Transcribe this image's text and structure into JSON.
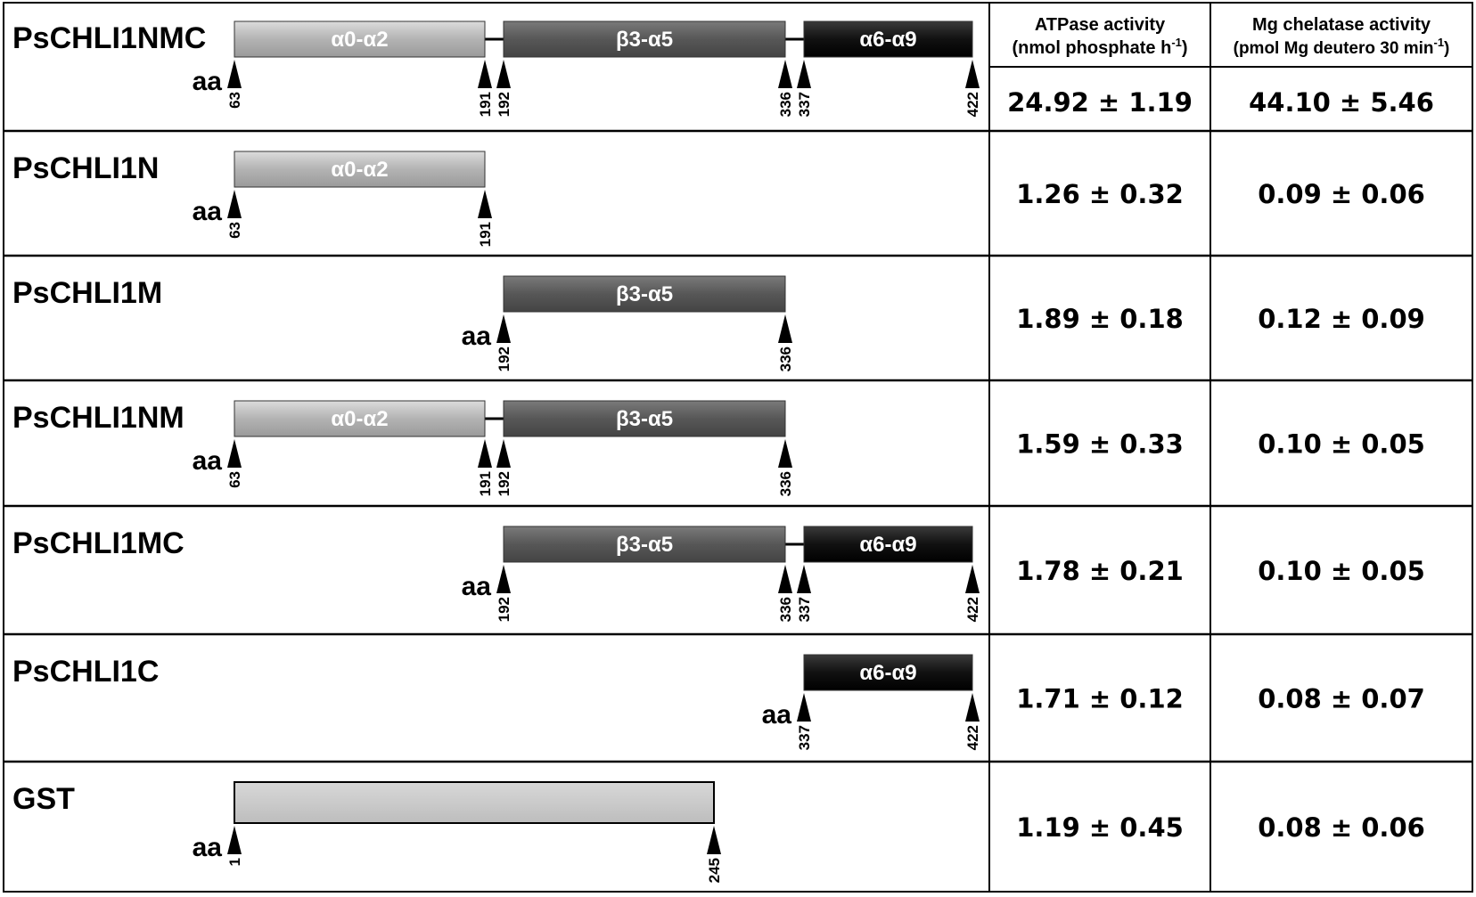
{
  "headers": {
    "atpase_line1": "ATPase activity",
    "atpase_line2": "(nmol phosphate h",
    "atpase_sup": "-1",
    "atpase_close": ")",
    "mgchel_line1": "Mg chelatase activity",
    "mgchel_line2": "(pmol Mg deutero 30 min",
    "mgchel_sup": "-1",
    "mgchel_close": ")"
  },
  "aa_label": "aa",
  "domains": {
    "N": {
      "label": "α0-α2",
      "fill": "#b5b5b5"
    },
    "M": {
      "label": "β3-α5",
      "fill": "#5a5a5a"
    },
    "C": {
      "label": "α6-α9",
      "fill": "#111111"
    },
    "GST": {
      "label": "",
      "fill": "#c8c8c8"
    }
  },
  "rows": [
    {
      "name": "PsCHLI1NMC",
      "segments": [
        "N",
        "M",
        "C"
      ],
      "markers": [
        "63",
        "191",
        "192",
        "336",
        "337",
        "422"
      ],
      "atpase": "24.92 ± 1.19",
      "mgchelatase": "44.10 ± 5.46"
    },
    {
      "name": "PsCHLI1N",
      "segments": [
        "N"
      ],
      "markers": [
        "63",
        "191"
      ],
      "atpase": "1.26 ± 0.32",
      "mgchelatase": "0.09 ± 0.06"
    },
    {
      "name": "PsCHLI1M",
      "segments": [
        "M"
      ],
      "markers": [
        "192",
        "336"
      ],
      "atpase": "1.89 ± 0.18",
      "mgchelatase": "0.12 ± 0.09"
    },
    {
      "name": "PsCHLI1NM",
      "segments": [
        "N",
        "M"
      ],
      "markers": [
        "63",
        "191",
        "192",
        "336"
      ],
      "atpase": "1.59 ± 0.33",
      "mgchelatase": "0.10 ± 0.05"
    },
    {
      "name": "PsCHLI1MC",
      "segments": [
        "M",
        "C"
      ],
      "markers": [
        "192",
        "336",
        "337",
        "422"
      ],
      "atpase": "1.78 ± 0.21",
      "mgchelatase": "0.10 ± 0.05"
    },
    {
      "name": "PsCHLI1C",
      "segments": [
        "C"
      ],
      "markers": [
        "337",
        "422"
      ],
      "atpase": "1.71 ± 0.12",
      "mgchelatase": "0.08 ± 0.07"
    },
    {
      "name": "GST",
      "segments": [
        "GST"
      ],
      "markers": [
        "1",
        "245"
      ],
      "atpase": "1.19 ± 0.45",
      "mgchelatase": "0.08 ± 0.06"
    }
  ]
}
